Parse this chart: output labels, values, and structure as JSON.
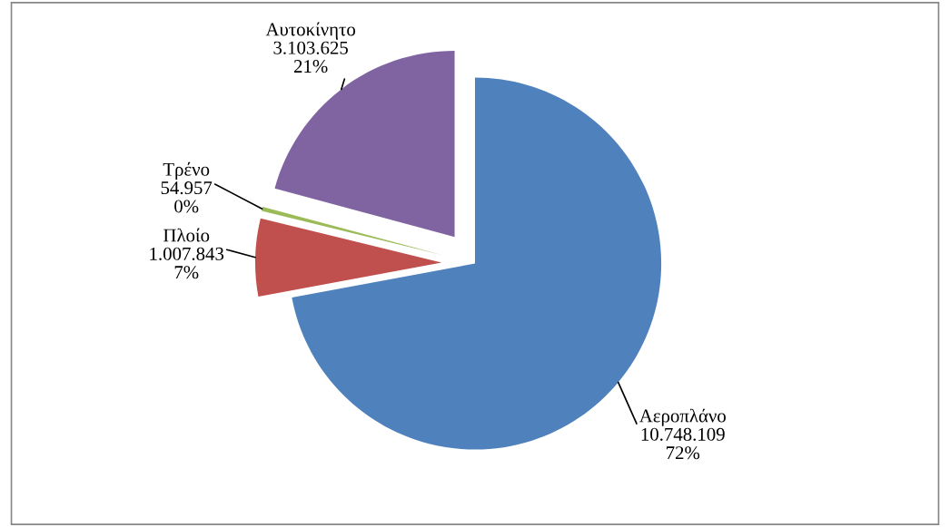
{
  "chart_data": {
    "type": "pie",
    "categories": [
      "Αεροπλάνο",
      "Πλοίο",
      "Τρένο",
      "Αυτοκίνητο"
    ],
    "values": [
      10748109,
      1007843,
      54957,
      3103625
    ],
    "colors": [
      "#4f81bd",
      "#c0504d",
      "#9bbb59",
      "#8064a2"
    ],
    "value_labels": [
      "10.748.109\n72%",
      "1.007.843\n7%",
      "54.957\n0%",
      "3.103.625\n21%"
    ],
    "legend": false
  }
}
